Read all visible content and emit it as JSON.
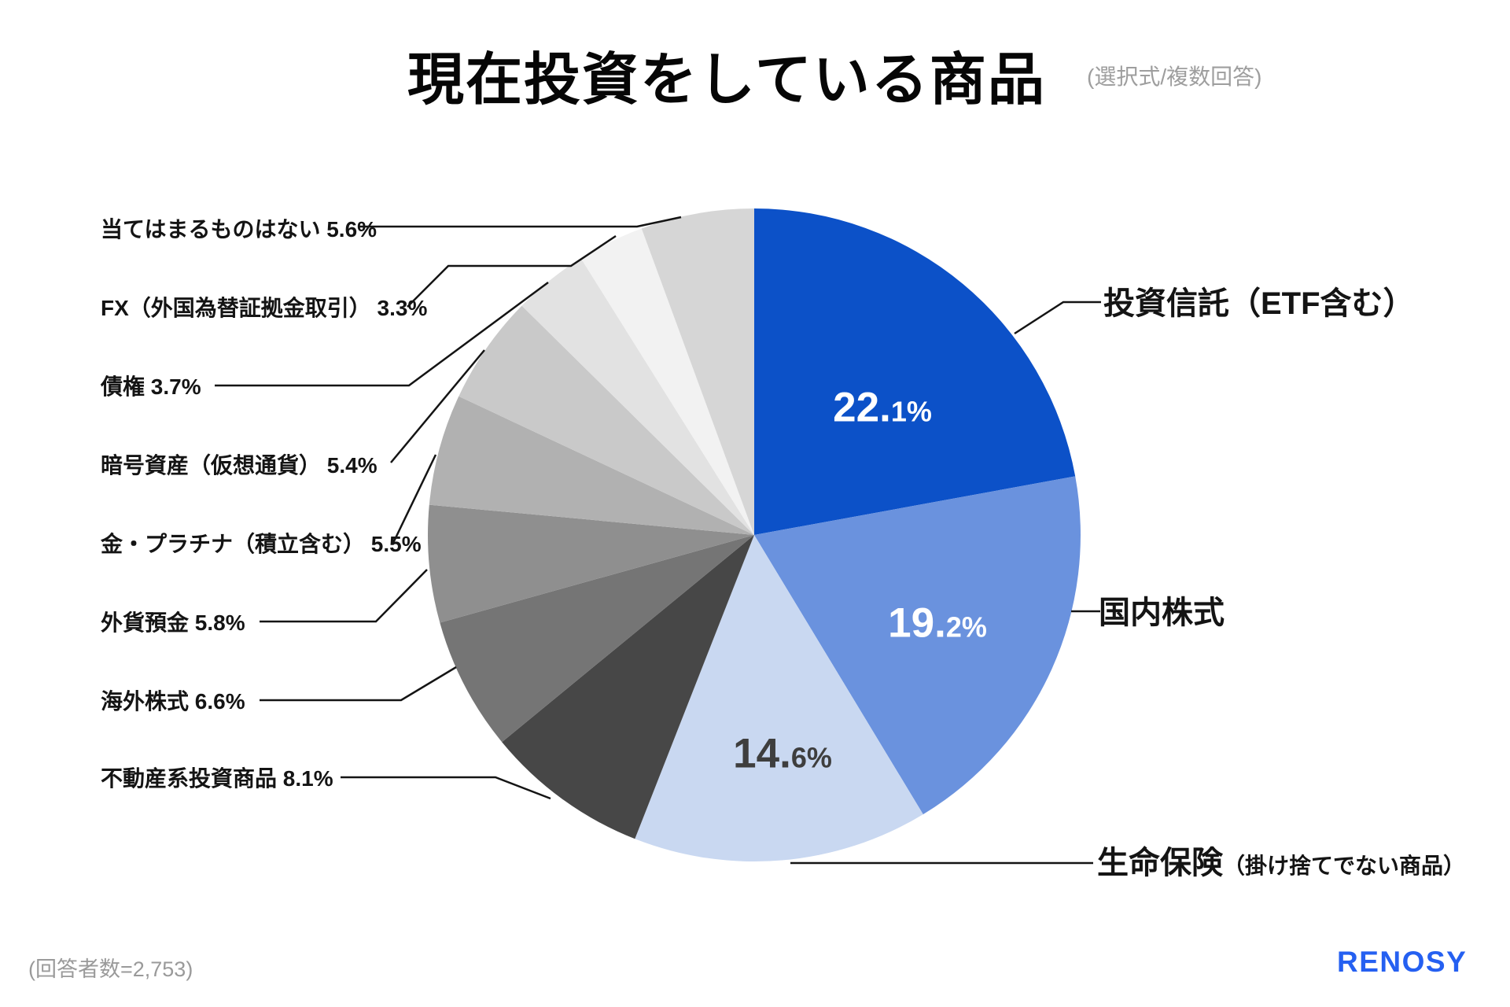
{
  "header": {
    "title": "現在投資をしている商品",
    "method_note": "(選択式/複数回答)"
  },
  "footer": {
    "respondents": "(回答者数=2,753)",
    "logo_text": "RENOSY",
    "logo_color": "#2560F1"
  },
  "chart_data": {
    "type": "pie",
    "title": "現在投資をしている商品",
    "unit": "%",
    "start_angle_deg": 0,
    "direction": "clockwise",
    "legend_position": "callouts",
    "slices": [
      {
        "name": "投資信託（ETF含む）",
        "value": 22.1,
        "color": "#0C51C8",
        "callout": {
          "side": "right",
          "main": "投資信託（ETF含む）"
        },
        "value_label": {
          "big": "22.",
          "small": "1%",
          "color": "#FFFFFF"
        }
      },
      {
        "name": "国内株式",
        "value": 19.2,
        "color": "#6A92DE",
        "callout": {
          "side": "right",
          "main": "国内株式"
        },
        "value_label": {
          "big": "19.",
          "small": "2%",
          "color": "#FFFFFF"
        }
      },
      {
        "name": "生命保険（掛け捨てでない商品）",
        "value": 14.6,
        "color": "#C9D8F1",
        "callout": {
          "side": "right",
          "main": "生命保険",
          "sub": "（掛け捨てでない商品）"
        },
        "value_label": {
          "big": "14.",
          "small": "6%",
          "color": "#3E3E3E"
        }
      },
      {
        "name": "不動産系投資商品",
        "value": 8.1,
        "color": "#474747",
        "callout": {
          "side": "left",
          "text": "不動産系投資商品 8.1%"
        }
      },
      {
        "name": "海外株式",
        "value": 6.6,
        "color": "#757575",
        "callout": {
          "side": "left",
          "text": "海外株式 6.6%"
        }
      },
      {
        "name": "外貨預金",
        "value": 5.8,
        "color": "#8F8F8F",
        "callout": {
          "side": "left",
          "text": "外貨預金 5.8%"
        }
      },
      {
        "name": "金・プラチナ（積立含む）",
        "value": 5.5,
        "color": "#B1B1B1",
        "callout": {
          "side": "left",
          "text": "金・プラチナ（積立含む） 5.5%"
        }
      },
      {
        "name": "暗号資産（仮想通貨）",
        "value": 5.4,
        "color": "#C9C9C9",
        "callout": {
          "side": "left",
          "text": "暗号資産（仮想通貨） 5.4%"
        }
      },
      {
        "name": "債権",
        "value": 3.7,
        "color": "#E2E2E2",
        "callout": {
          "side": "left",
          "text": "債権 3.7%"
        }
      },
      {
        "name": "FX（外国為替証拠金取引）",
        "value": 3.3,
        "color": "#F2F2F2",
        "callout": {
          "side": "left",
          "text": "FX（外国為替証拠金取引） 3.3%"
        }
      },
      {
        "name": "当てはまるものはない",
        "value": 5.6,
        "color": "#D6D6D6",
        "callout": {
          "side": "left",
          "text": "当てはまるものはない 5.6%"
        }
      }
    ]
  }
}
